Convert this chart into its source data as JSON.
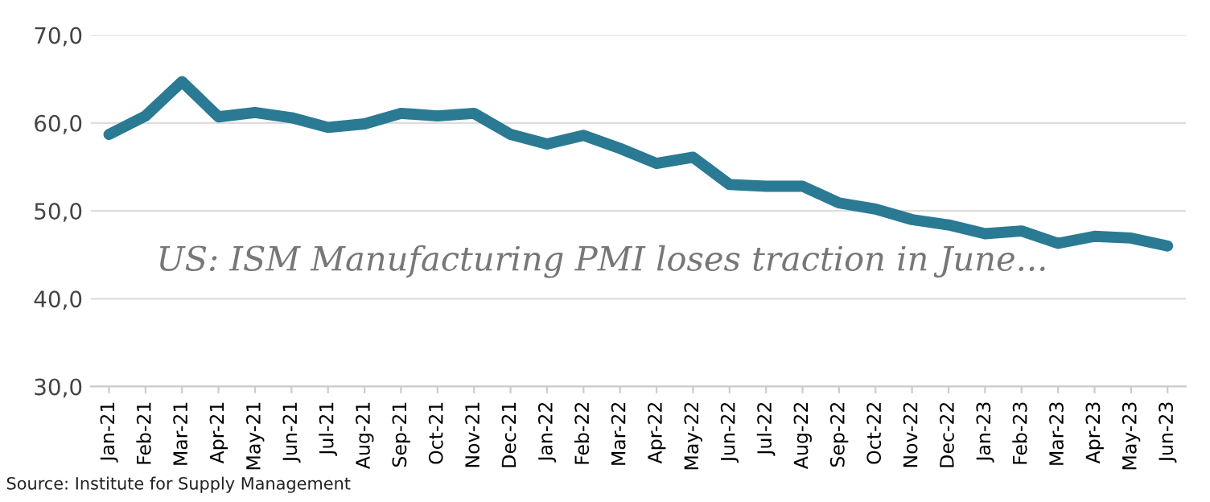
{
  "chart_data": {
    "type": "line",
    "categories": [
      "Jan-21",
      "Feb-21",
      "Mar-21",
      "Apr-21",
      "May-21",
      "Jun-21",
      "Jul-21",
      "Aug-21",
      "Sep-21",
      "Oct-21",
      "Nov-21",
      "Dec-21",
      "Jan-22",
      "Feb-22",
      "Mar-22",
      "Apr-22",
      "May-22",
      "Jun-22",
      "Jul-22",
      "Aug-22",
      "Sep-22",
      "Oct-22",
      "Nov-22",
      "Dec-22",
      "Jan-23",
      "Feb-23",
      "Mar-23",
      "Apr-23",
      "May-23",
      "Jun-23"
    ],
    "series": [
      {
        "color": "#2a7a94",
        "values": [
          58.7,
          60.8,
          64.7,
          60.7,
          61.2,
          60.6,
          59.5,
          59.9,
          61.1,
          60.8,
          61.1,
          58.7,
          57.6,
          58.6,
          57.1,
          55.4,
          56.1,
          53.0,
          52.8,
          52.8,
          50.9,
          50.2,
          49.0,
          48.4,
          47.4,
          47.7,
          46.3,
          47.1,
          46.9,
          46.0
        ]
      }
    ],
    "ylim": [
      30,
      70
    ],
    "yticks": [
      {
        "value": 30,
        "label": "30,0"
      },
      {
        "value": 40,
        "label": "40,0"
      },
      {
        "value": 50,
        "label": "50,0"
      },
      {
        "value": 60,
        "label": "60,0"
      },
      {
        "value": 70,
        "label": "70,0"
      }
    ],
    "grid": "y",
    "marker": "none",
    "line_style": "solid",
    "annotations": [
      "US: ISM Manufacturing PMI loses traction in June...",
      "Source: Institute for Supply Management"
    ]
  }
}
